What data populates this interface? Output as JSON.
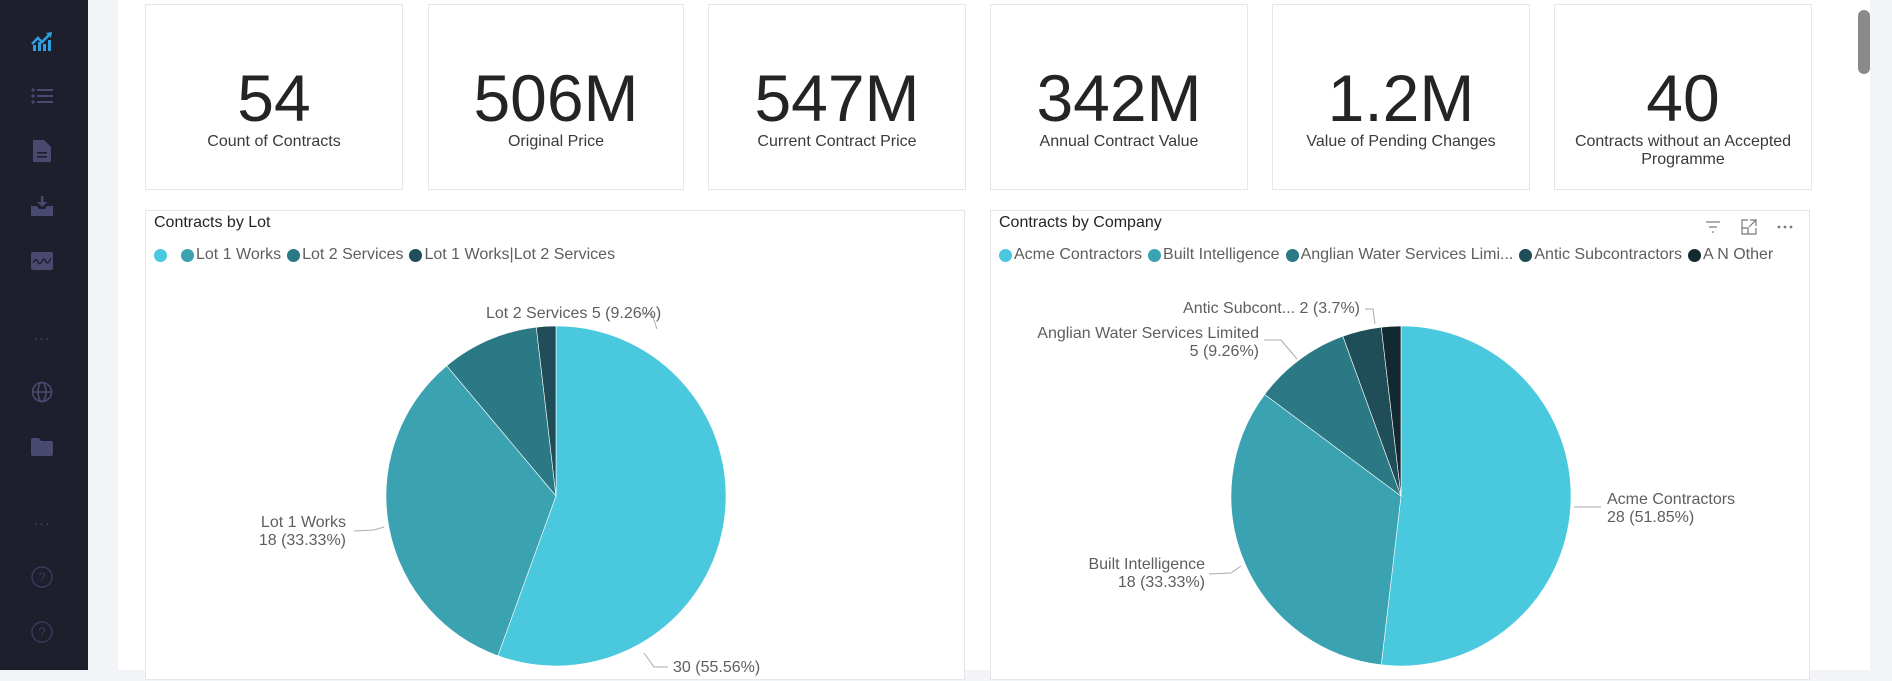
{
  "sidebar": {
    "items": [
      {
        "icon": "analytics-chart-icon",
        "active": true
      },
      {
        "icon": "list-icon"
      },
      {
        "icon": "document-icon"
      },
      {
        "icon": "download-tray-icon"
      },
      {
        "icon": "image-signature-icon"
      },
      {
        "icon": "more-dots-icon"
      },
      {
        "icon": "globe-icon"
      },
      {
        "icon": "folder-icon"
      },
      {
        "icon": "more-dots-icon"
      },
      {
        "icon": "help-icon"
      },
      {
        "icon": "help-icon"
      }
    ],
    "dots": "···",
    "help": "?"
  },
  "kpis": [
    {
      "value": "54",
      "label": "Count of Contracts"
    },
    {
      "value": "506M",
      "label": "Original Price"
    },
    {
      "value": "547M",
      "label": "Current Contract Price"
    },
    {
      "value": "342M",
      "label": "Annual Contract Value"
    },
    {
      "value": "1.2M",
      "label": "Value of Pending Changes"
    },
    {
      "value": "40",
      "label": "Contracts without an Accepted Programme"
    }
  ],
  "colors": {
    "s1": "#4ac8de",
    "s2": "#3ba2b2",
    "s3": "#2b7985",
    "s4": "#1f4e59",
    "s5": "#132a31",
    "active_icon": "#2f9ee0",
    "inactive_icon": "#4a4a70"
  },
  "chart_data": [
    {
      "type": "pie",
      "title": "Contracts by Lot",
      "legend_position": "top-left",
      "legend": [
        "",
        "Lot 1 Works",
        "Lot 2 Services",
        "Lot 1 Works|Lot 2 Services"
      ],
      "slices": [
        {
          "name": "",
          "value": 30,
          "percent": "55.56%",
          "label": "30 (55.56%)"
        },
        {
          "name": "Lot 1 Works",
          "value": 18,
          "percent": "33.33%",
          "label_line1": "Lot 1 Works",
          "label_line2": "18 (33.33%)"
        },
        {
          "name": "Lot 2 Services",
          "value": 5,
          "percent": "9.26%",
          "label": "Lot 2 Services 5 (9.26%)"
        },
        {
          "name": "Lot 1 Works|Lot 2 Services",
          "value": 1,
          "percent": "1.85%"
        }
      ]
    },
    {
      "type": "pie",
      "title": "Contracts by Company",
      "legend_position": "top-left",
      "legend": [
        "Acme Contractors",
        "Built Intelligence",
        "Anglian Water Services Limi...",
        "Antic Subcontractors",
        "A N Other"
      ],
      "slices": [
        {
          "name": "Acme Contractors",
          "value": 28,
          "percent": "51.85%",
          "label_line1": "Acme Contractors",
          "label_line2": "28 (51.85%)"
        },
        {
          "name": "Built Intelligence",
          "value": 18,
          "percent": "33.33%",
          "label_line1": "Built Intelligence",
          "label_line2": "18 (33.33%)"
        },
        {
          "name": "Anglian Water Services Limited",
          "value": 5,
          "percent": "9.26%",
          "label_line1": "Anglian Water Services Limited",
          "label_line2": "5 (9.26%)"
        },
        {
          "name": "Antic Subcontractors",
          "value": 2,
          "percent": "3.7%",
          "label": "Antic Subcont... 2 (3.7%)"
        },
        {
          "name": "A N Other",
          "value": 1,
          "percent": "1.85%"
        }
      ]
    }
  ]
}
